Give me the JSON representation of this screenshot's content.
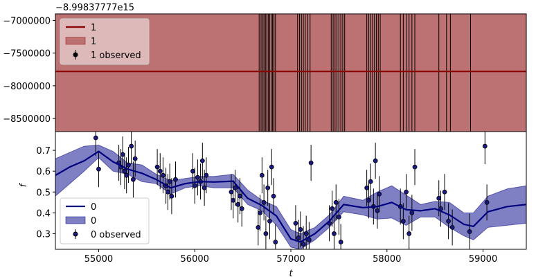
{
  "chart_data": [
    {
      "type": "line",
      "panel": "top",
      "offset_label": "−8.99837777e15",
      "xlim": [
        54550,
        59450
      ],
      "ylim": [
        -8700000,
        -6900000
      ],
      "yticks": [
        -7000000,
        -7500000,
        -8000000,
        -8500000
      ],
      "ytick_labels": [
        "−7000000",
        "−7500000",
        "−8000000",
        "−8500000"
      ],
      "ylabel": "",
      "grid": false,
      "legend_position": "top-left",
      "colors": {
        "line": "#8b0000",
        "band": "#bc7272",
        "points": "#000000"
      },
      "legend": [
        {
          "kind": "line",
          "label": "1"
        },
        {
          "kind": "band",
          "label": "1"
        },
        {
          "kind": "errorbar",
          "label": "1 observed"
        }
      ],
      "series": [
        {
          "name": "1",
          "kind": "line",
          "x": [
            54550,
            59450
          ],
          "y": [
            -7780000,
            -7780000
          ]
        }
      ],
      "band": {
        "x": [
          54550,
          59450
        ],
        "lower": [
          -8700000,
          -8700000
        ],
        "upper": [
          -6900000,
          -6900000
        ]
      },
      "observed_x": [
        56670,
        56690,
        56705,
        56720,
        56735,
        56750,
        56765,
        56780,
        56795,
        56810,
        56825,
        56840,
        57070,
        57090,
        57110,
        57130,
        57150,
        57175,
        57200,
        57420,
        57440,
        57460,
        57480,
        57500,
        57520,
        57540,
        57560,
        57790,
        57810,
        57830,
        57850,
        57870,
        57890,
        57910,
        57930,
        58140,
        58170,
        58200,
        58230,
        58260,
        58290,
        58540,
        58620,
        58660,
        58870
      ]
    },
    {
      "type": "line",
      "panel": "bottom",
      "xlim": [
        54550,
        59450
      ],
      "ylim": [
        0.225,
        0.79
      ],
      "xticks": [
        55000,
        56000,
        57000,
        58000,
        59000
      ],
      "xtick_labels": [
        "55000",
        "56000",
        "57000",
        "58000",
        "59000"
      ],
      "yticks": [
        0.3,
        0.4,
        0.5,
        0.6,
        0.7
      ],
      "ytick_labels": [
        "0.3",
        "0.4",
        "0.5",
        "0.6",
        "0.7"
      ],
      "xlabel": "t",
      "ylabel": "f",
      "grid": false,
      "legend_position": "bottom-left",
      "colors": {
        "line": "#00007f",
        "band": "#7f7fc4",
        "points": "#1a1a80"
      },
      "legend": [
        {
          "kind": "line",
          "label": "0"
        },
        {
          "kind": "band",
          "label": "0"
        },
        {
          "kind": "errorbar",
          "label": "0 observed"
        }
      ],
      "series": [
        {
          "name": "0",
          "kind": "line",
          "x": [
            54550,
            54700,
            54850,
            55000,
            55150,
            55300,
            55450,
            55600,
            55750,
            55900,
            56050,
            56200,
            56400,
            56550,
            56700,
            56850,
            57000,
            57100,
            57250,
            57400,
            57550,
            57750,
            57900,
            58050,
            58200,
            58350,
            58500,
            58650,
            58800,
            58900,
            59050,
            59250,
            59450
          ],
          "y": [
            0.58,
            0.62,
            0.65,
            0.695,
            0.645,
            0.61,
            0.59,
            0.56,
            0.52,
            0.54,
            0.55,
            0.548,
            0.552,
            0.47,
            0.435,
            0.385,
            0.275,
            0.26,
            0.3,
            0.36,
            0.44,
            0.425,
            0.43,
            0.45,
            0.415,
            0.41,
            0.42,
            0.39,
            0.345,
            0.335,
            0.405,
            0.43,
            0.44
          ]
        }
      ],
      "band": {
        "x": [
          54550,
          54700,
          54850,
          55000,
          55150,
          55300,
          55450,
          55600,
          55750,
          55900,
          56050,
          56200,
          56400,
          56550,
          56700,
          56850,
          57000,
          57100,
          57250,
          57400,
          57550,
          57750,
          57900,
          58050,
          58200,
          58350,
          58500,
          58650,
          58800,
          58900,
          59050,
          59250,
          59450
        ],
        "lower": [
          0.48,
          0.54,
          0.6,
          0.665,
          0.6,
          0.585,
          0.55,
          0.54,
          0.49,
          0.52,
          0.53,
          0.52,
          0.52,
          0.44,
          0.41,
          0.34,
          0.235,
          0.225,
          0.27,
          0.33,
          0.405,
          0.39,
          0.37,
          0.375,
          0.34,
          0.38,
          0.38,
          0.33,
          0.29,
          0.27,
          0.33,
          0.34,
          0.35
        ],
        "upper": [
          0.66,
          0.69,
          0.72,
          0.725,
          0.695,
          0.64,
          0.63,
          0.585,
          0.555,
          0.565,
          0.575,
          0.575,
          0.585,
          0.51,
          0.46,
          0.43,
          0.32,
          0.3,
          0.33,
          0.39,
          0.48,
          0.46,
          0.5,
          0.53,
          0.485,
          0.44,
          0.455,
          0.45,
          0.4,
          0.4,
          0.48,
          0.515,
          0.53
        ]
      },
      "observed": [
        [
          54970,
          0.76
        ],
        [
          55000,
          0.61
        ],
        [
          55210,
          0.64
        ],
        [
          55230,
          0.62
        ],
        [
          55250,
          0.68
        ],
        [
          55270,
          0.6
        ],
        [
          55290,
          0.58
        ],
        [
          55310,
          0.63
        ],
        [
          55340,
          0.72
        ],
        [
          55360,
          0.56
        ],
        [
          55380,
          0.66
        ],
        [
          55610,
          0.62
        ],
        [
          55640,
          0.6
        ],
        [
          55670,
          0.58
        ],
        [
          55700,
          0.53
        ],
        [
          55720,
          0.5
        ],
        [
          55740,
          0.55
        ],
        [
          55760,
          0.48
        ],
        [
          55800,
          0.56
        ],
        [
          55980,
          0.6
        ],
        [
          56000,
          0.53
        ],
        [
          56030,
          0.57
        ],
        [
          56060,
          0.55
        ],
        [
          56080,
          0.65
        ],
        [
          56100,
          0.52
        ],
        [
          56120,
          0.58
        ],
        [
          56380,
          0.5
        ],
        [
          56400,
          0.46
        ],
        [
          56420,
          0.52
        ],
        [
          56450,
          0.44
        ],
        [
          56470,
          0.48
        ],
        [
          56490,
          0.42
        ],
        [
          56660,
          0.33
        ],
        [
          56680,
          0.4
        ],
        [
          56700,
          0.58
        ],
        [
          56720,
          0.45
        ],
        [
          56740,
          0.3
        ],
        [
          56760,
          0.52
        ],
        [
          56780,
          0.36
        ],
        [
          56800,
          0.62
        ],
        [
          56820,
          0.48
        ],
        [
          56840,
          0.26
        ],
        [
          57050,
          0.35
        ],
        [
          57080,
          0.28
        ],
        [
          57100,
          0.32
        ],
        [
          57130,
          0.25
        ],
        [
          57160,
          0.3
        ],
        [
          57190,
          0.27
        ],
        [
          57210,
          0.64
        ],
        [
          57400,
          0.35
        ],
        [
          57430,
          0.42
        ],
        [
          57450,
          0.3
        ],
        [
          57470,
          0.45
        ],
        [
          57500,
          0.38
        ],
        [
          57520,
          0.26
        ],
        [
          57790,
          0.52
        ],
        [
          57810,
          0.46
        ],
        [
          57830,
          0.55
        ],
        [
          57860,
          0.43
        ],
        [
          57880,
          0.65
        ],
        [
          57900,
          0.41
        ],
        [
          57920,
          0.49
        ],
        [
          58140,
          0.43
        ],
        [
          58170,
          0.36
        ],
        [
          58200,
          0.5
        ],
        [
          58230,
          0.3
        ],
        [
          58260,
          0.4
        ],
        [
          58290,
          0.62
        ],
        [
          58540,
          0.47
        ],
        [
          58560,
          0.42
        ],
        [
          58600,
          0.5
        ],
        [
          58640,
          0.36
        ],
        [
          58680,
          0.33
        ],
        [
          58860,
          0.31
        ],
        [
          59020,
          0.72
        ],
        [
          59040,
          0.45
        ]
      ]
    }
  ]
}
